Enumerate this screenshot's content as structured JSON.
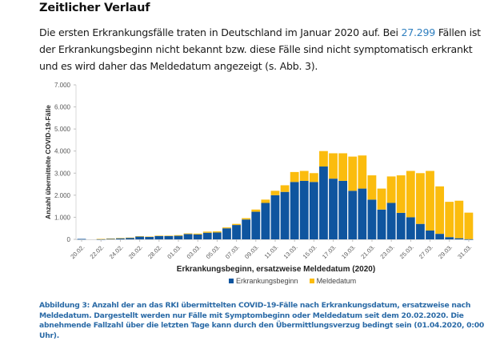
{
  "section": {
    "title": "Zeitlicher Verlauf",
    "paragraph_before": "Die ersten Erkrankungsfälle traten in Deutschland im Januar 2020 auf. Bei ",
    "paragraph_highlight": "27.299",
    "paragraph_after": " Fällen ist der Erkrankungsbeginn nicht bekannt bzw. diese Fälle sind nicht symptomatisch erkrankt und es wird daher das Meldedatum angezeigt (s. Abb. 3)."
  },
  "caption": "Abbildung 3: Anzahl der an das RKI übermittelten COVID-19-Fälle nach Erkrankungsdatum, ersatzweise nach Meldedatum. Dargestellt werden nur Fälle mit Symptombeginn oder Meldedatum seit dem 20.02.2020. Die abnehmende Fallzahl über die letzten Tage kann durch den Übermittlungsverzug bedingt sein (01.04.2020, 0:00 Uhr).",
  "colors": {
    "erkrankungsbeginn": "#0f559f",
    "meldedatum": "#fbbc0e",
    "highlight_text": "#2f7fbf",
    "caption_text": "#2a6aa6"
  },
  "chart_data": {
    "type": "bar",
    "stacked": true,
    "title": "",
    "xlabel": "Erkrankungsbeginn, ersatzweise Meldedatum (2020)",
    "ylabel": "Anzahl übermittelte COVID-19-Fälle",
    "ylim": [
      0,
      7000
    ],
    "yticks": [
      0,
      1000,
      2000,
      3000,
      4000,
      5000,
      6000,
      7000
    ],
    "ytick_labels": [
      "0",
      "1.000",
      "2.000",
      "3.000",
      "4.000",
      "5.000",
      "6.000",
      "7.000"
    ],
    "grid": false,
    "legend_position": "bottom",
    "categories": [
      "20.02.",
      "21.02.",
      "22.02.",
      "23.02.",
      "24.02.",
      "25.02.",
      "26.02.",
      "27.02.",
      "28.02.",
      "29.02.",
      "01.03.",
      "02.03.",
      "03.03.",
      "04.03.",
      "05.03.",
      "06.03.",
      "07.03.",
      "08.03.",
      "09.03.",
      "10.03.",
      "11.03.",
      "12.03.",
      "13.03.",
      "14.03.",
      "15.03.",
      "16.03.",
      "17.03.",
      "18.03.",
      "19.03.",
      "20.03.",
      "21.03.",
      "22.03.",
      "23.03.",
      "24.03.",
      "25.03.",
      "26.03.",
      "27.03.",
      "28.03.",
      "29.03.",
      "30.03.",
      "31.03."
    ],
    "xtick_labels": [
      "20.02.",
      "22.02.",
      "24.02.",
      "26.02.",
      "28.02.",
      "01.03.",
      "03.03.",
      "05.03.",
      "07.03.",
      "09.03.",
      "11.03.",
      "13.03.",
      "15.03.",
      "17.03.",
      "19.03.",
      "21.03.",
      "23.03.",
      "25.03.",
      "27.03.",
      "29.03.",
      "31.03."
    ],
    "series": [
      {
        "name": "Erkrankungsbeginn",
        "values": [
          20,
          0,
          15,
          30,
          50,
          70,
          130,
          110,
          150,
          150,
          160,
          240,
          220,
          300,
          310,
          500,
          650,
          900,
          1250,
          1650,
          2000,
          2150,
          2600,
          2650,
          2600,
          3300,
          2750,
          2650,
          2200,
          2300,
          1800,
          1350,
          1650,
          1200,
          1000,
          700,
          400,
          250,
          100,
          50,
          10
        ]
      },
      {
        "name": "Meldedatum",
        "values": [
          0,
          0,
          5,
          10,
          10,
          10,
          10,
          15,
          20,
          20,
          30,
          30,
          40,
          50,
          50,
          40,
          50,
          60,
          100,
          150,
          200,
          300,
          450,
          450,
          400,
          700,
          1150,
          1250,
          1550,
          1500,
          1100,
          950,
          1200,
          1700,
          2100,
          2300,
          2700,
          2150,
          1600,
          1700,
          1200
        ]
      }
    ]
  }
}
